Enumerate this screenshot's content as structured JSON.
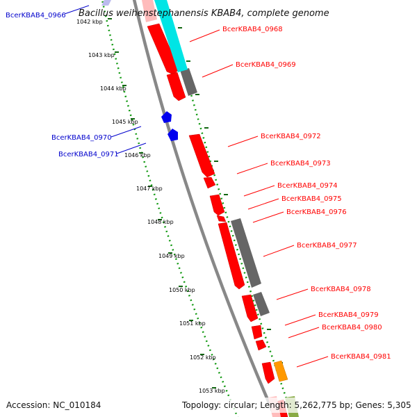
{
  "title": "Bacillus weihenstephanensis KBAB4, complete genome",
  "accession": "Accession: NC_010184",
  "topology": "Topology: circular; Length: 5,262,775 bp; Genes: 5,305",
  "ruler": [
    "1042 kbp",
    "1043 kbp",
    "1044 kbp",
    "1045 kbp",
    "1046 kbp",
    "1047 kbp",
    "1048 kbp",
    "1049 kbp",
    "1050 kbp",
    "1051 kbp",
    "1052 kbp",
    "1053 kbp"
  ],
  "genes_red": [
    "BcerKBAB4_0968",
    "BcerKBAB4_0969",
    "BcerKBAB4_0972",
    "BcerKBAB4_0973",
    "BcerKBAB4_0974",
    "BcerKBAB4_0975",
    "BcerKBAB4_0976",
    "BcerKBAB4_0977",
    "BcerKBAB4_0978",
    "BcerKBAB4_0979",
    "BcerKBAB4_0980",
    "BcerKBAB4_0981"
  ],
  "genes_blue": [
    "BcerKBAB4_0966",
    "BcerKBAB4_0970",
    "BcerKBAB4_0971"
  ],
  "colors": {
    "forward_cds": "#ff0000",
    "reverse_cds": "#0000ee",
    "gray_feature": "#777777",
    "cyan_feature": "#00e5e5",
    "orange_feature": "#ff9900",
    "green_feature": "#88aa44",
    "backbone": "#888888",
    "dotted_guides": "#119911",
    "red_labels": "#ff0000",
    "blue_labels": "#0000cc"
  }
}
